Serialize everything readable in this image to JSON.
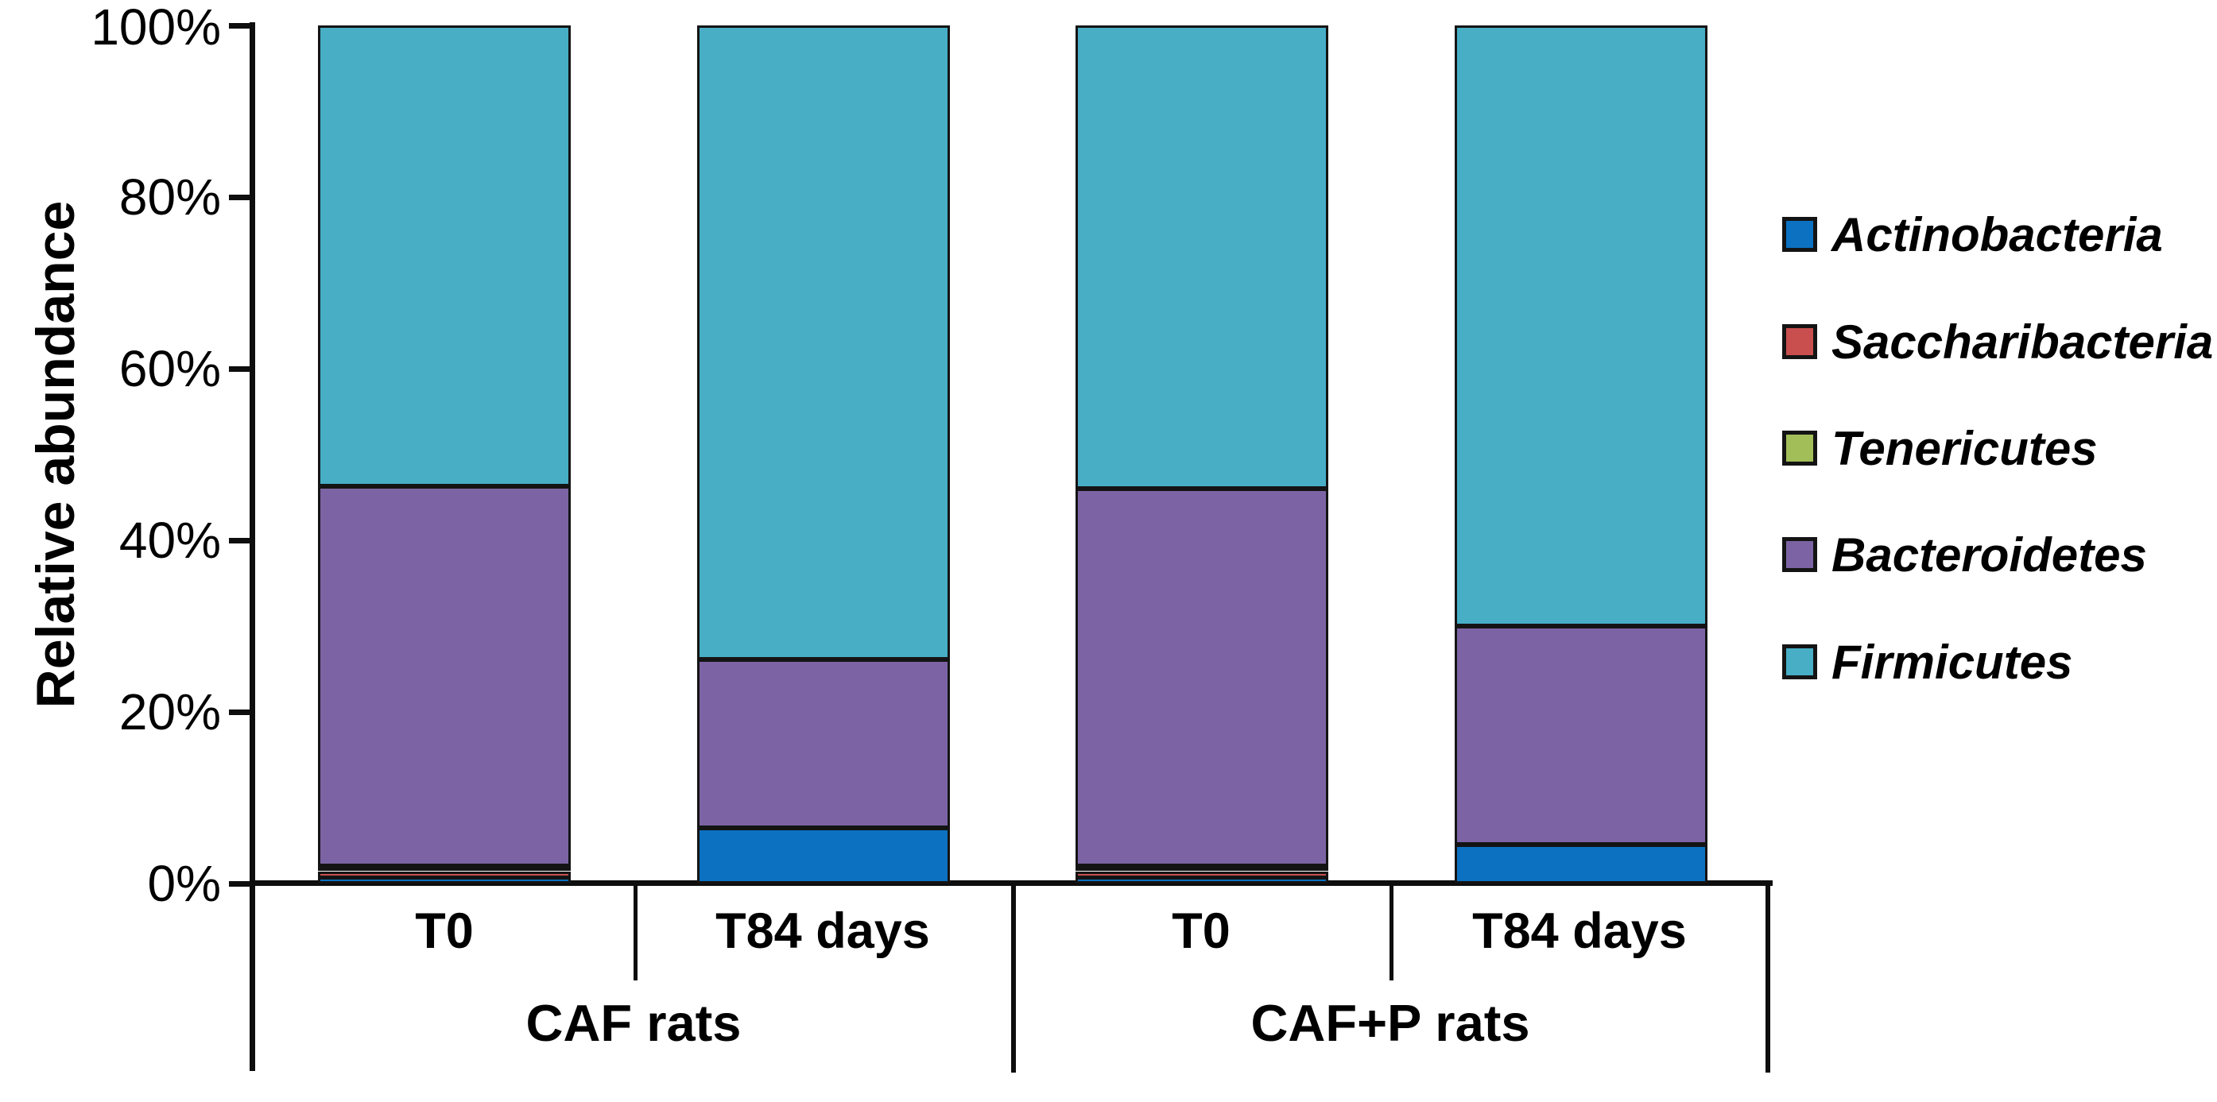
{
  "figure": {
    "y_axis_title": "Relative abundance",
    "y_tick_labels": [
      "0%",
      "20%",
      "40%",
      "60%",
      "80%",
      "100%"
    ],
    "condition_labels": [
      "T0",
      "T84 days",
      "T0",
      "T84 days"
    ],
    "group_labels": [
      "CAF rats",
      "CAF+P rats"
    ]
  },
  "chart_data": {
    "type": "bar",
    "subtype": "stacked-100-percent-column",
    "title": "",
    "xlabel": "",
    "ylabel": "Relative abundance",
    "ylim": [
      0,
      100
    ],
    "y_ticks_percent": [
      0,
      20,
      40,
      60,
      80,
      100
    ],
    "grid": false,
    "legend_position": "right",
    "groups": [
      "CAF rats",
      "CAF+P rats"
    ],
    "category_labels": [
      "T0",
      "T84 days",
      "T0",
      "T84 days"
    ],
    "categories": [
      "CAF rats T0",
      "CAF rats T84 days",
      "CAF+P rats T0",
      "CAF+P rats T84 days"
    ],
    "stacking_order_bottom_to_top": [
      "Actinobacteria",
      "Saccharibacteria",
      "Tenericutes",
      "Bacteroidetes",
      "Firmicutes"
    ],
    "series": [
      {
        "name": "Actinobacteria",
        "color": "#0C71C1",
        "values": [
          0.7,
          6.5,
          0.7,
          4.5
        ]
      },
      {
        "name": "Saccharibacteria",
        "color": "#C94F4F",
        "values": [
          0.7,
          0,
          0.7,
          0
        ]
      },
      {
        "name": "Tenericutes",
        "color": "#A2BE59",
        "values": [
          0.6,
          0,
          0.6,
          0
        ]
      },
      {
        "name": "Bacteroidetes",
        "color": "#7C64A4",
        "values": [
          44.3,
          19.6,
          44.0,
          25.5
        ]
      },
      {
        "name": "Firmicutes",
        "color": "#47AEC6",
        "values": [
          53.7,
          73.9,
          54.0,
          70.0
        ]
      }
    ],
    "line_color": "#0E0E0E"
  }
}
